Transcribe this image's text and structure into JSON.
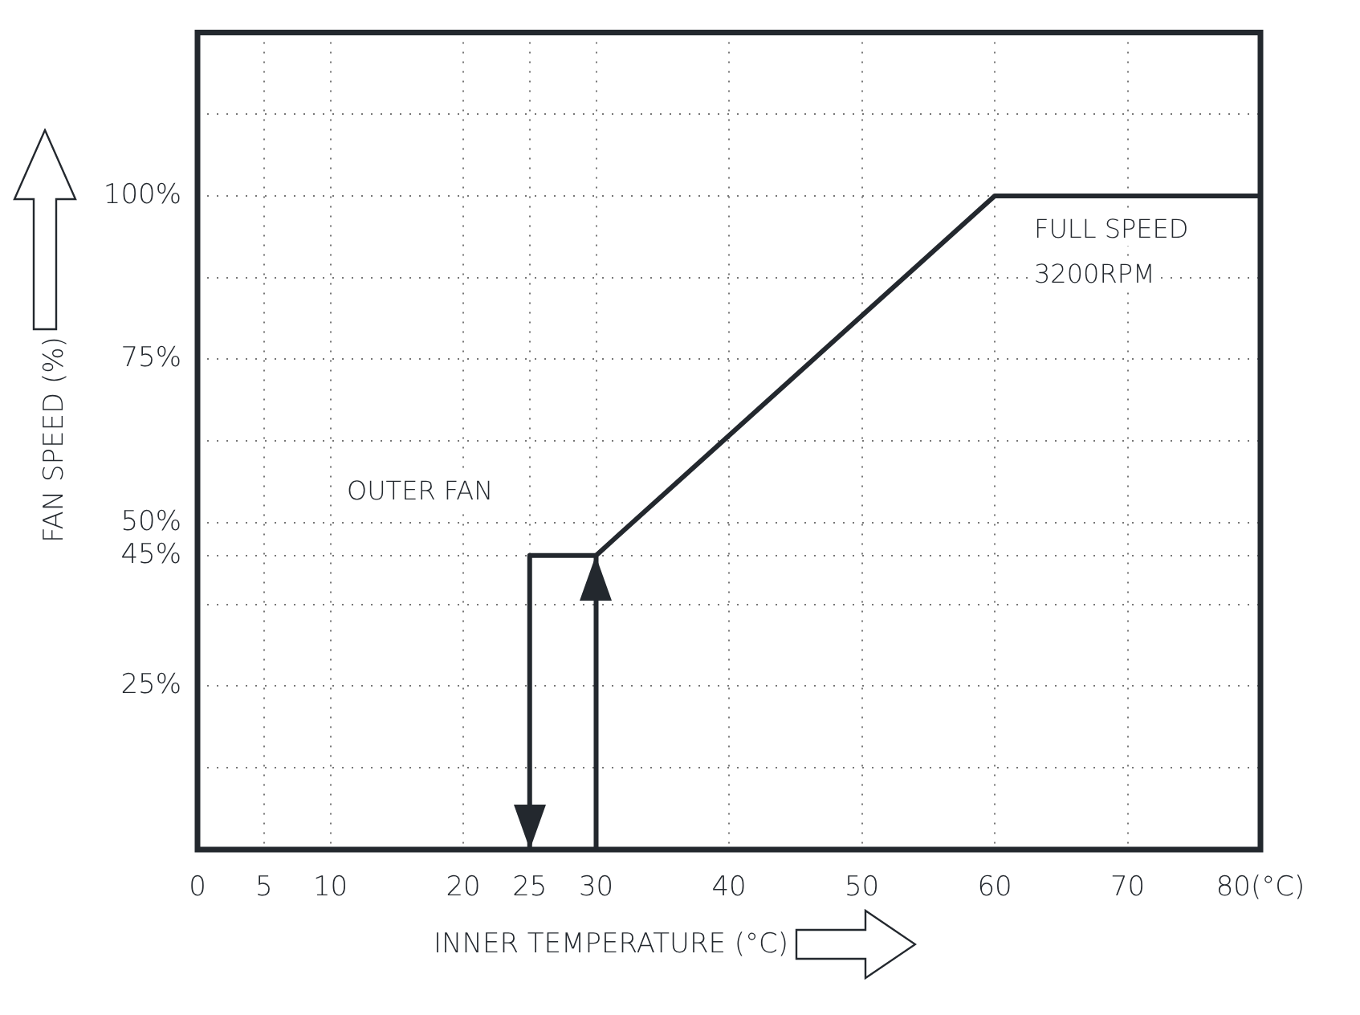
{
  "chart_data": {
    "type": "line",
    "xlabel": "INNER TEMPERATURE (°C)",
    "ylabel": "FAN SPEED (%)",
    "series": [
      {
        "color": "#23282e",
        "x": [
          30,
          30,
          60,
          80
        ],
        "values": [
          0,
          45,
          100,
          100
        ]
      },
      {
        "color": "#23282e",
        "x": [
          30,
          25,
          25
        ],
        "values": [
          45,
          45,
          0
        ]
      }
    ],
    "xlim": [
      0,
      80
    ],
    "xticks": [
      0,
      5,
      10,
      20,
      25,
      30,
      40,
      50,
      60,
      70,
      {
        "value": 80,
        "label": "80(°C)"
      }
    ],
    "ylim": [
      0,
      125
    ],
    "yticks": [
      {
        "value": 12.5,
        "label": null
      },
      {
        "value": 25,
        "label": "25%"
      },
      {
        "value": 37.5,
        "label": null
      },
      {
        "value": 45,
        "label": "45%"
      },
      {
        "value": 50,
        "label": "50%"
      },
      {
        "value": 62.5,
        "label": null
      },
      {
        "value": 75,
        "label": "75%"
      },
      {
        "value": 87.5,
        "label": null
      },
      {
        "value": 100,
        "label": "100%"
      },
      {
        "value": 112.5,
        "label": null
      }
    ],
    "annotations": [
      "OUTER FAN",
      "FULL SPEED",
      "3200RPM"
    ],
    "grid": true,
    "legend": false,
    "marker": "none",
    "line_style": "solid"
  }
}
